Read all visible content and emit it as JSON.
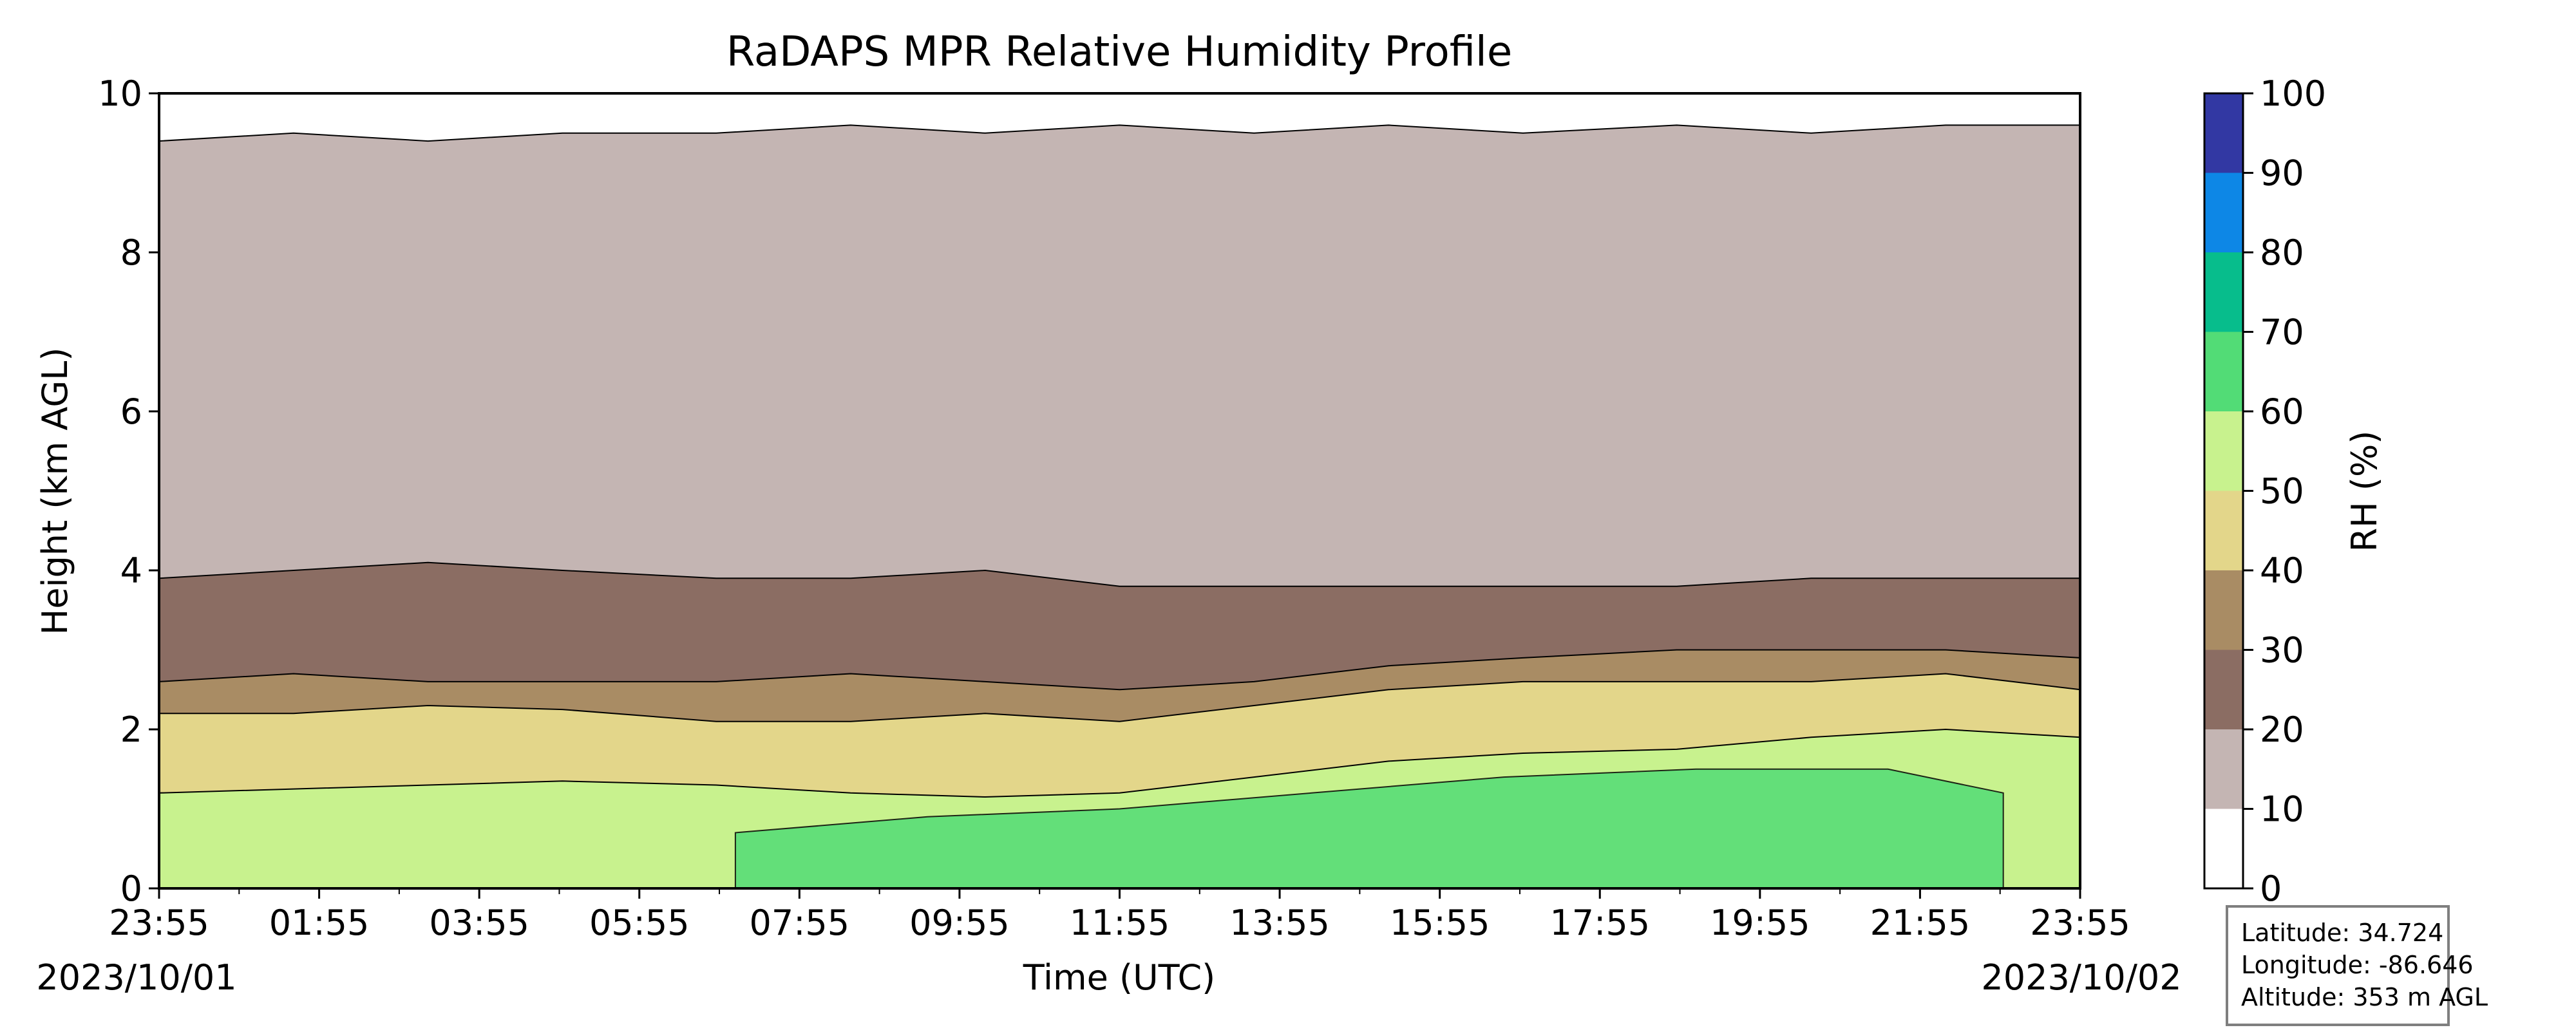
{
  "chart_data": {
    "type": "heatmap",
    "subtype": "filled-contour",
    "title": "RaDAPS MPR Relative Humidity Profile",
    "xlabel": "Time (UTC)",
    "ylabel": "Height (km AGL)",
    "x_ticks": [
      "23:55",
      "01:55",
      "03:55",
      "05:55",
      "07:55",
      "09:55",
      "11:55",
      "13:55",
      "15:55",
      "17:55",
      "19:55",
      "21:55",
      "23:55"
    ],
    "x_start_date": "2023/10/01",
    "x_end_date": "2023/10/02",
    "y_ticks": [
      0,
      2,
      4,
      6,
      8,
      10
    ],
    "ylim": [
      0,
      10
    ],
    "colorbar": {
      "label": "RH (%)",
      "levels": [
        0,
        10,
        20,
        30,
        40,
        50,
        60,
        70,
        80,
        90,
        100
      ],
      "colors": [
        "#ffffff",
        "#c4b5b3",
        "#8b6d63",
        "#a98c64",
        "#e3d68a",
        "#c8f28e",
        "#52dc76",
        "#07bd8c",
        "#0d87e6",
        "#3238a3"
      ]
    },
    "grid": false,
    "rh_layers": [
      {
        "range": "50-70",
        "top_km": [
          1.2,
          1.25,
          1.3,
          1.35,
          1.3,
          1.2,
          1.15,
          1.2,
          1.4,
          1.6,
          1.7,
          1.75,
          1.9,
          2.0,
          1.9
        ]
      },
      {
        "range": "40-50",
        "top_km": [
          2.2,
          2.2,
          2.3,
          2.25,
          2.1,
          2.1,
          2.2,
          2.1,
          2.3,
          2.5,
          2.6,
          2.6,
          2.6,
          2.7,
          2.5
        ]
      },
      {
        "range": "30-40",
        "top_km": [
          2.6,
          2.7,
          2.6,
          2.6,
          2.6,
          2.7,
          2.6,
          2.5,
          2.6,
          2.8,
          2.9,
          3.0,
          3.0,
          3.0,
          2.9
        ]
      },
      {
        "range": "20-30",
        "top_km": [
          3.9,
          4.0,
          4.1,
          4.0,
          3.9,
          3.9,
          4.0,
          3.8,
          3.8,
          3.8,
          3.8,
          3.8,
          3.9,
          3.9,
          3.9
        ]
      },
      {
        "range": "10-20",
        "top_km": [
          9.4,
          9.5,
          9.4,
          9.5,
          9.5,
          9.6,
          9.5,
          9.6,
          9.5,
          9.6,
          9.5,
          9.6,
          9.5,
          9.6,
          9.6
        ]
      }
    ],
    "rh_layer_times_fraction": [
      0,
      0.07,
      0.14,
      0.21,
      0.29,
      0.36,
      0.43,
      0.5,
      0.57,
      0.64,
      0.71,
      0.79,
      0.86,
      0.93,
      1.0
    ]
  },
  "station_info": {
    "latitude": "Latitude: 34.724",
    "longitude": "Longitude: -86.646",
    "altitude": "Altitude: 353 m AGL"
  }
}
